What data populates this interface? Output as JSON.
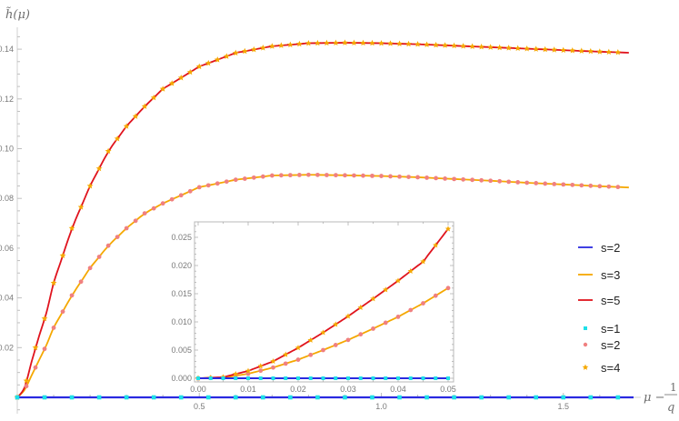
{
  "chart_data": [
    {
      "type": "line",
      "name": "main",
      "title": "",
      "xlabel": "μ − 1/q",
      "ylabel": "h̃(μ)",
      "xlim": [
        0,
        1.7
      ],
      "ylim": [
        -0.006,
        0.15
      ],
      "x_ticks": [
        0.5,
        1.0,
        1.5
      ],
      "x_tick_labels": [
        "0.5",
        "1.0",
        "1.5"
      ],
      "y_ticks": [
        0.02,
        0.04,
        0.06,
        0.08,
        0.1,
        0.12,
        0.14
      ],
      "y_tick_labels": [
        "0.02",
        "0.04",
        "0.06",
        "0.08",
        "0.10",
        "0.12",
        "0.14"
      ],
      "grid": false,
      "legend_position": "right",
      "series": [
        {
          "name": "s=2",
          "kind": "line",
          "color": "#2a2ae0",
          "x": [
            0,
            0.1,
            0.2,
            0.4,
            0.6,
            0.8,
            1.0,
            1.2,
            1.4,
            1.6,
            1.695
          ],
          "y": [
            0,
            0,
            0,
            0,
            0,
            0,
            0,
            0,
            0,
            0,
            0
          ]
        },
        {
          "name": "s=3",
          "kind": "line",
          "color": "#f5a800",
          "x": [
            0,
            0.02,
            0.05,
            0.08,
            0.1,
            0.15,
            0.2,
            0.25,
            0.3,
            0.35,
            0.4,
            0.5,
            0.6,
            0.7,
            0.8,
            0.9,
            1.0,
            1.1,
            1.2,
            1.3,
            1.4,
            1.5,
            1.6,
            1.695
          ],
          "y": [
            0,
            0.003,
            0.012,
            0.021,
            0.028,
            0.041,
            0.052,
            0.061,
            0.068,
            0.074,
            0.078,
            0.0845,
            0.0875,
            0.0892,
            0.0895,
            0.0893,
            0.089,
            0.0885,
            0.0878,
            0.0871,
            0.0863,
            0.0856,
            0.0849,
            0.0843
          ]
        },
        {
          "name": "s=5",
          "kind": "line",
          "color": "#e0141e",
          "x": [
            0,
            0.02,
            0.05,
            0.08,
            0.1,
            0.15,
            0.2,
            0.25,
            0.3,
            0.35,
            0.4,
            0.5,
            0.6,
            0.7,
            0.8,
            0.9,
            1.0,
            1.1,
            1.2,
            1.3,
            1.4,
            1.5,
            1.6,
            1.695
          ],
          "y": [
            0,
            0.004,
            0.02,
            0.034,
            0.046,
            0.068,
            0.085,
            0.099,
            0.109,
            0.117,
            0.124,
            0.133,
            0.1385,
            0.1412,
            0.1424,
            0.1426,
            0.1424,
            0.142,
            0.1414,
            0.1408,
            0.1402,
            0.1396,
            0.139,
            0.1385
          ]
        },
        {
          "name": "s=1",
          "kind": "markers",
          "marker": "square",
          "color": "#1ee0e8",
          "x_spacing": 0.075,
          "y_constant": 0
        },
        {
          "name": "s=2",
          "kind": "markers",
          "marker": "circle",
          "color": "#f08080",
          "follows": "s=3 curve",
          "x_spacing": 0.025
        },
        {
          "name": "s=4",
          "kind": "markers",
          "marker": "star",
          "color": "#f5a800",
          "follows": "s=5 curve",
          "x_spacing": 0.025
        }
      ]
    },
    {
      "type": "line",
      "name": "inset",
      "title": "",
      "xlabel": "",
      "ylabel": "",
      "xlim": [
        0,
        0.05
      ],
      "ylim": [
        0,
        0.027
      ],
      "x_ticks": [
        0.0,
        0.01,
        0.02,
        0.03,
        0.04,
        0.05
      ],
      "x_tick_labels": [
        "0.00",
        "0.01",
        "0.02",
        "0.03",
        "0.04",
        "0.05"
      ],
      "y_ticks": [
        0.0,
        0.005,
        0.01,
        0.015,
        0.02,
        0.025
      ],
      "y_tick_labels": [
        "0.000",
        "0.005",
        "0.010",
        "0.015",
        "0.020",
        "0.025"
      ],
      "frame": true,
      "series": [
        {
          "name": "s=2",
          "kind": "line",
          "color": "#2a2ae0",
          "x": [
            0,
            0.05
          ],
          "y": [
            0,
            0
          ]
        },
        {
          "name": "s=3",
          "kind": "line",
          "color": "#f5a800",
          "x": [
            0,
            0.005,
            0.01,
            0.015,
            0.02,
            0.025,
            0.03,
            0.035,
            0.04,
            0.045,
            0.05
          ],
          "y": [
            0,
            0.0001,
            0.0008,
            0.0019,
            0.0033,
            0.005,
            0.0068,
            0.0088,
            0.0109,
            0.0133,
            0.016
          ]
        },
        {
          "name": "s=5",
          "kind": "line",
          "color": "#e0141e",
          "x": [
            0,
            0.005,
            0.01,
            0.015,
            0.02,
            0.025,
            0.03,
            0.035,
            0.04,
            0.045,
            0.05
          ],
          "y": [
            0,
            0.0002,
            0.0013,
            0.003,
            0.0054,
            0.0081,
            0.011,
            0.0141,
            0.0173,
            0.0207,
            0.0265
          ]
        },
        {
          "name": "s=1",
          "kind": "markers",
          "marker": "square",
          "color": "#1ee0e8",
          "x_spacing": 0.0025,
          "y_constant": 0
        },
        {
          "name": "s=2",
          "kind": "markers",
          "marker": "circle",
          "color": "#f08080",
          "follows": "s=3 curve",
          "x_spacing": 0.0025
        },
        {
          "name": "s=4",
          "kind": "markers",
          "marker": "star",
          "color": "#f5a800",
          "follows": "s=5 curve",
          "x_spacing": 0.0025
        }
      ]
    }
  ],
  "axes": {
    "y_label": "h̃(μ)",
    "x_label_main": "μ −",
    "x_label_num": "1",
    "x_label_den": "q"
  },
  "legend": {
    "lines": [
      {
        "label": "s=2",
        "color": "#2a2ae0"
      },
      {
        "label": "s=3",
        "color": "#f5a800"
      },
      {
        "label": "s=5",
        "color": "#e0141e"
      }
    ],
    "markers": [
      {
        "label": "s=1",
        "color": "#1ee0e8",
        "shape": "square"
      },
      {
        "label": "s=2",
        "color": "#f08080",
        "shape": "circle"
      },
      {
        "label": "s=4",
        "color": "#f5a800",
        "shape": "star"
      }
    ]
  }
}
